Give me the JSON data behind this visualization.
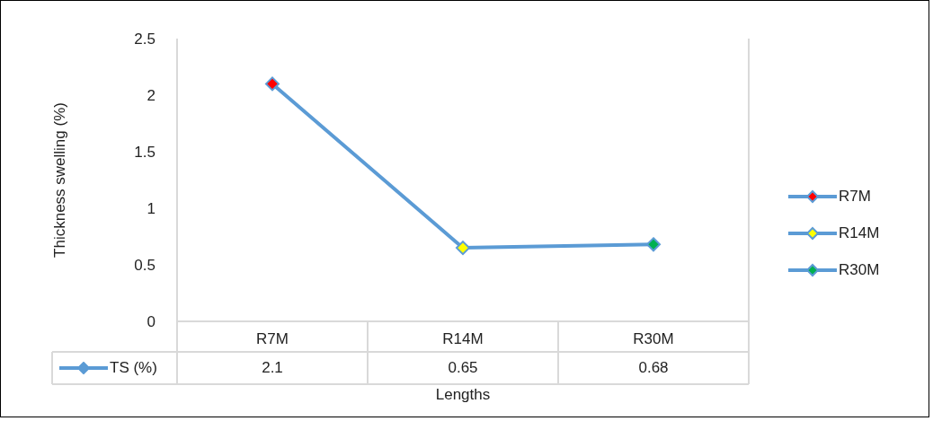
{
  "chart_data": {
    "type": "line",
    "ylabel": "Thickness swelling (%)",
    "xlabel": "Lengths",
    "categories": [
      "R7M",
      "R14M",
      "R30M"
    ],
    "series": [
      {
        "name": "TS (%)",
        "color": "#5b9bd5",
        "colors": [
          "#ff0000",
          "#ffff00",
          "#00b050"
        ],
        "values": [
          2.1,
          0.65,
          0.68
        ]
      }
    ],
    "ylim": [
      0,
      2.5
    ],
    "yticks": [
      0,
      0.5,
      1,
      1.5,
      2,
      2.5
    ],
    "legend": "bottom left",
    "marker": "diamond",
    "data_labels": true
  }
}
